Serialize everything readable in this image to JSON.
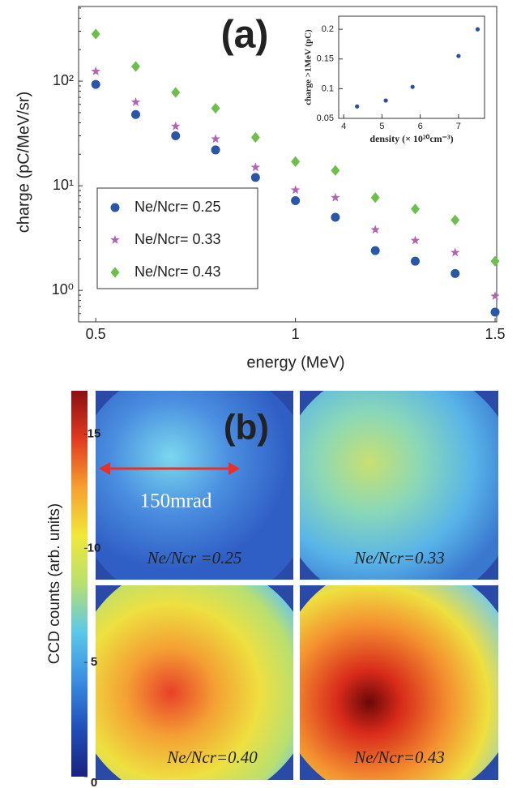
{
  "chart_data": [
    {
      "type": "scatter",
      "panel_label": "(a)",
      "ylabel": "charge (pC/MeV/sr)",
      "xlabel": "energy (MeV)",
      "yscale": "log",
      "legend": "lower left",
      "xlim": [
        0.457,
        1.504
      ],
      "xticks": [
        0.5,
        1,
        1.5
      ],
      "ylim": [
        0.5,
        517
      ],
      "yticks": [
        {
          "value": 1,
          "label": "10⁰"
        },
        {
          "value": 10,
          "label": "10¹"
        },
        {
          "value": 100,
          "label": "10²"
        }
      ],
      "x": [
        0.5,
        0.6,
        0.7,
        0.8,
        0.9,
        1.0,
        1.1,
        1.2,
        1.3,
        1.4,
        1.5
      ],
      "series": [
        {
          "name": "Ne/Ncr= 0.25",
          "color": "#2b56a8",
          "marker": "circle",
          "values": [
            93,
            48,
            30,
            22,
            12,
            7.2,
            5.0,
            2.4,
            1.9,
            1.45,
            0.62
          ]
        },
        {
          "name": "Ne/Ncr= 0.33",
          "color": "#b463b4",
          "marker": "star",
          "values": [
            124,
            63,
            37,
            28,
            15,
            9.1,
            7.7,
            3.8,
            3.0,
            2.3,
            0.88
          ]
        },
        {
          "name": "Ne/Ncr= 0.43",
          "color": "#6cbf4a",
          "marker": "diamond",
          "values": [
            282,
            138,
            78,
            55,
            29,
            17,
            14,
            7.7,
            6.0,
            4.7,
            1.9
          ]
        }
      ]
    },
    {
      "type": "scatter",
      "ylabel": "charge >1MeV (pC)",
      "xlabel": "density (× 10²⁰cm⁻³)",
      "xlim": [
        3.87,
        7.68
      ],
      "xticks": [
        4,
        5,
        6,
        7
      ],
      "ylim": [
        0.05,
        0.222
      ],
      "yticks": [
        0.05,
        0.1,
        0.15,
        0.2
      ],
      "x": [
        4.35,
        5.1,
        5.8,
        7.0,
        7.5
      ],
      "series": [
        {
          "color": "#2b4fa0",
          "marker": "circle",
          "values": [
            0.07,
            0.08,
            0.103,
            0.155,
            0.2
          ]
        }
      ]
    },
    {
      "type": "colorbar",
      "panel_label": "(b)",
      "ylabel": "CCD counts (arb. units)",
      "ylim": [
        0,
        16.9
      ],
      "yticks": [
        0,
        5,
        10,
        15
      ],
      "colors": [
        "#1a237e",
        "#1f4fb8",
        "#3a8ee0",
        "#5cc8ea",
        "#b8e070",
        "#f0e838",
        "#f5a030",
        "#e03a20",
        "#8a1010"
      ],
      "scale_bar_label": "150mrad",
      "image_labels": [
        "Ne/Ncr =0.25",
        "Ne/Ncr=0.33",
        "Ne/Ncr=0.40",
        "Ne/Ncr=0.43"
      ]
    }
  ]
}
